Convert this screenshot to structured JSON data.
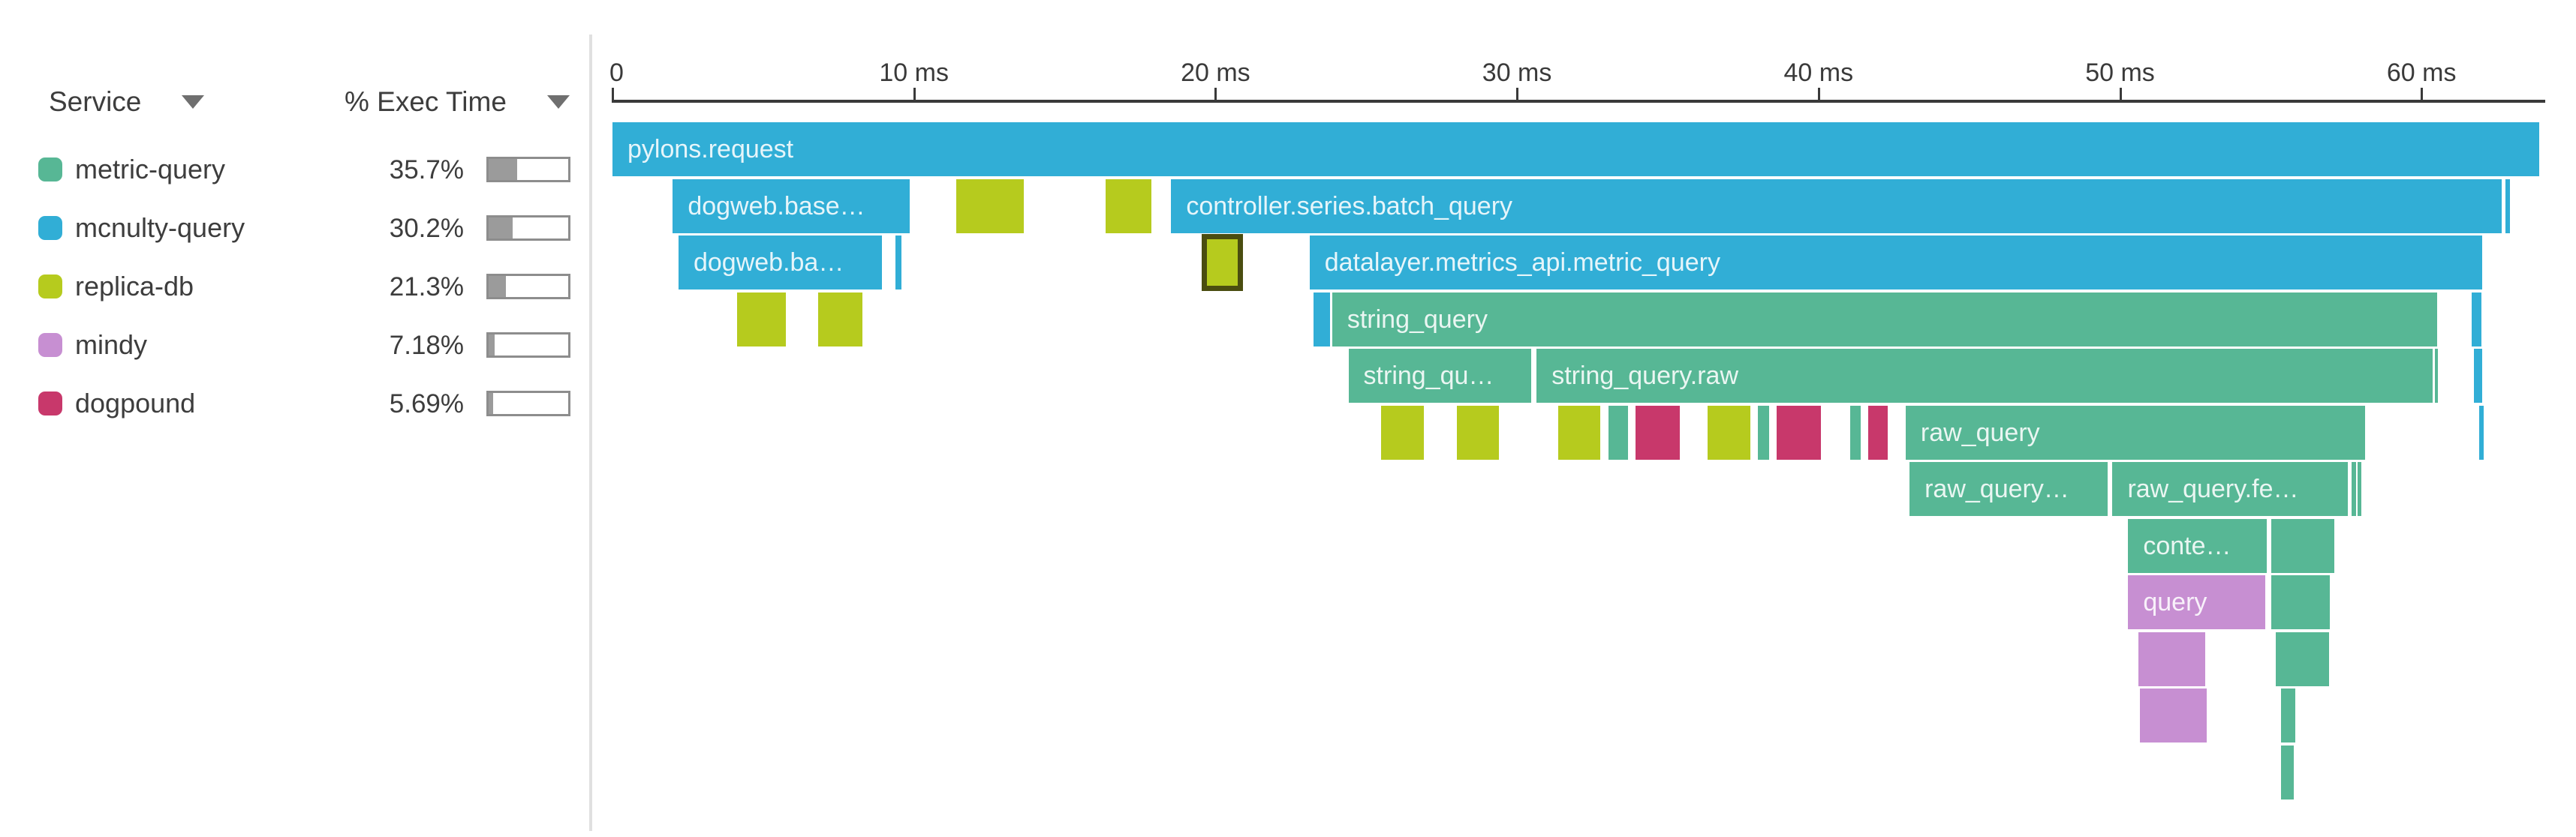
{
  "sidebar": {
    "header": {
      "service_label": "Service",
      "exec_label": "% Exec Time"
    },
    "services": [
      {
        "name": "metric-query",
        "color": "#57b795",
        "pct_label": "35.7%",
        "pct_value": 35.7
      },
      {
        "name": "mcnulty-query",
        "color": "#31aed6",
        "pct_label": "30.2%",
        "pct_value": 30.2
      },
      {
        "name": "replica-db",
        "color": "#b6cb1e",
        "pct_label": "21.3%",
        "pct_value": 21.3
      },
      {
        "name": "mindy",
        "color": "#c78fd2",
        "pct_label": "7.18%",
        "pct_value": 7.18
      },
      {
        "name": "dogpound",
        "color": "#c8386b",
        "pct_label": "5.69%",
        "pct_value": 5.69
      }
    ]
  },
  "timeline": {
    "unit": "ms",
    "ticks": [
      {
        "ms": 0,
        "label": "0"
      },
      {
        "ms": 10,
        "label": "10 ms"
      },
      {
        "ms": 20,
        "label": "20 ms"
      },
      {
        "ms": 30,
        "label": "30 ms"
      },
      {
        "ms": 40,
        "label": "40 ms"
      },
      {
        "ms": 50,
        "label": "50 ms"
      },
      {
        "ms": 60,
        "label": "60 ms"
      }
    ],
    "axis_end_ms": 64.1
  },
  "spans": [
    {
      "row": 0,
      "service": "mcnulty-query",
      "label": "pylons.request",
      "start_ms": 0.0,
      "end_ms": 63.9
    },
    {
      "row": 1,
      "service": "mcnulty-query",
      "label": "dogweb.base…",
      "start_ms": 2.0,
      "end_ms": 9.85
    },
    {
      "row": 1,
      "service": "replica-db",
      "label": "",
      "start_ms": 11.4,
      "end_ms": 13.64
    },
    {
      "row": 1,
      "service": "replica-db",
      "label": "",
      "start_ms": 16.36,
      "end_ms": 17.88
    },
    {
      "row": 1,
      "service": "mcnulty-query",
      "label": "controller.series.batch_query",
      "start_ms": 18.53,
      "end_ms": 62.67
    },
    {
      "row": 1,
      "service": "mcnulty-query",
      "label": "",
      "start_ms": 62.79,
      "end_ms": 62.94
    },
    {
      "row": 2,
      "service": "mcnulty-query",
      "label": "dogweb.ba…",
      "start_ms": 2.19,
      "end_ms": 8.93
    },
    {
      "row": 2,
      "service": "mcnulty-query",
      "label": "",
      "start_ms": 9.38,
      "end_ms": 9.58
    },
    {
      "row": 2,
      "service": "replica-db",
      "label": "",
      "selected": true,
      "start_ms": 19.53,
      "end_ms": 20.92
    },
    {
      "row": 2,
      "service": "mcnulty-query",
      "label": "datalayer.metrics_api.metric_query",
      "start_ms": 23.12,
      "end_ms": 62.02
    },
    {
      "row": 3,
      "service": "replica-db",
      "label": "",
      "start_ms": 4.14,
      "end_ms": 5.74
    },
    {
      "row": 3,
      "service": "replica-db",
      "label": "",
      "start_ms": 6.81,
      "end_ms": 8.28
    },
    {
      "row": 3,
      "service": "mcnulty-query",
      "label": "",
      "start_ms": 23.24,
      "end_ms": 23.81
    },
    {
      "row": 3,
      "service": "metric-query",
      "label": "string_query",
      "start_ms": 23.87,
      "end_ms": 60.52
    },
    {
      "row": 3,
      "service": "mcnulty-query",
      "label": "",
      "start_ms": 61.67,
      "end_ms": 61.99
    },
    {
      "row": 4,
      "service": "metric-query",
      "label": "string_qu…",
      "start_ms": 24.41,
      "end_ms": 30.47
    },
    {
      "row": 4,
      "service": "metric-query",
      "label": "string_query.raw",
      "start_ms": 30.65,
      "end_ms": 60.37
    },
    {
      "row": 4,
      "service": "metric-query",
      "label": "",
      "start_ms": 60.45,
      "end_ms": 60.55
    },
    {
      "row": 4,
      "service": "mcnulty-query",
      "label": "",
      "start_ms": 61.75,
      "end_ms": 62.02
    },
    {
      "row": 5,
      "service": "replica-db",
      "label": "",
      "start_ms": 25.49,
      "end_ms": 26.91
    },
    {
      "row": 5,
      "service": "replica-db",
      "label": "",
      "start_ms": 28.0,
      "end_ms": 29.4
    },
    {
      "row": 5,
      "service": "replica-db",
      "label": "",
      "start_ms": 31.37,
      "end_ms": 32.77
    },
    {
      "row": 5,
      "service": "metric-query",
      "label": "",
      "start_ms": 33.04,
      "end_ms": 33.67
    },
    {
      "row": 5,
      "service": "dogpound",
      "label": "",
      "start_ms": 33.94,
      "end_ms": 35.39
    },
    {
      "row": 5,
      "service": "replica-db",
      "label": "",
      "start_ms": 36.31,
      "end_ms": 37.73
    },
    {
      "row": 5,
      "service": "metric-query",
      "label": "",
      "start_ms": 37.98,
      "end_ms": 38.35
    },
    {
      "row": 5,
      "service": "dogpound",
      "label": "",
      "start_ms": 38.6,
      "end_ms": 40.07
    },
    {
      "row": 5,
      "service": "metric-query",
      "label": "",
      "start_ms": 41.05,
      "end_ms": 41.4
    },
    {
      "row": 5,
      "service": "dogpound",
      "label": "",
      "start_ms": 41.65,
      "end_ms": 42.29
    },
    {
      "row": 5,
      "service": "metric-query",
      "label": "raw_query",
      "start_ms": 42.89,
      "end_ms": 58.13
    },
    {
      "row": 5,
      "service": "mcnulty-query",
      "label": "",
      "start_ms": 61.9,
      "end_ms": 62.07
    },
    {
      "row": 6,
      "service": "metric-query",
      "label": "raw_query…",
      "start_ms": 43.02,
      "end_ms": 49.6
    },
    {
      "row": 6,
      "service": "metric-query",
      "label": "raw_query.fe…",
      "start_ms": 49.75,
      "end_ms": 57.56
    },
    {
      "row": 6,
      "service": "metric-query",
      "label": "",
      "start_ms": 57.68,
      "end_ms": 57.83
    },
    {
      "row": 6,
      "service": "metric-query",
      "label": "",
      "start_ms": 57.88,
      "end_ms": 58.0
    },
    {
      "row": 7,
      "service": "metric-query",
      "label": "conte…",
      "start_ms": 50.27,
      "end_ms": 54.86
    },
    {
      "row": 7,
      "service": "metric-query",
      "label": "",
      "start_ms": 55.01,
      "end_ms": 57.11
    },
    {
      "row": 8,
      "service": "mindy",
      "label": "query",
      "start_ms": 50.27,
      "end_ms": 54.81
    },
    {
      "row": 8,
      "service": "metric-query",
      "label": "",
      "start_ms": 55.01,
      "end_ms": 56.96
    },
    {
      "row": 9,
      "service": "mindy",
      "label": "",
      "start_ms": 50.62,
      "end_ms": 52.82
    },
    {
      "row": 9,
      "service": "metric-query",
      "label": "",
      "start_ms": 55.16,
      "end_ms": 56.93
    },
    {
      "row": 10,
      "service": "mindy",
      "label": "",
      "start_ms": 50.67,
      "end_ms": 52.87
    },
    {
      "row": 10,
      "service": "metric-query",
      "label": "",
      "start_ms": 55.34,
      "end_ms": 55.81
    },
    {
      "row": 11,
      "service": "metric-query",
      "label": "",
      "start_ms": 55.34,
      "end_ms": 55.76
    }
  ]
}
